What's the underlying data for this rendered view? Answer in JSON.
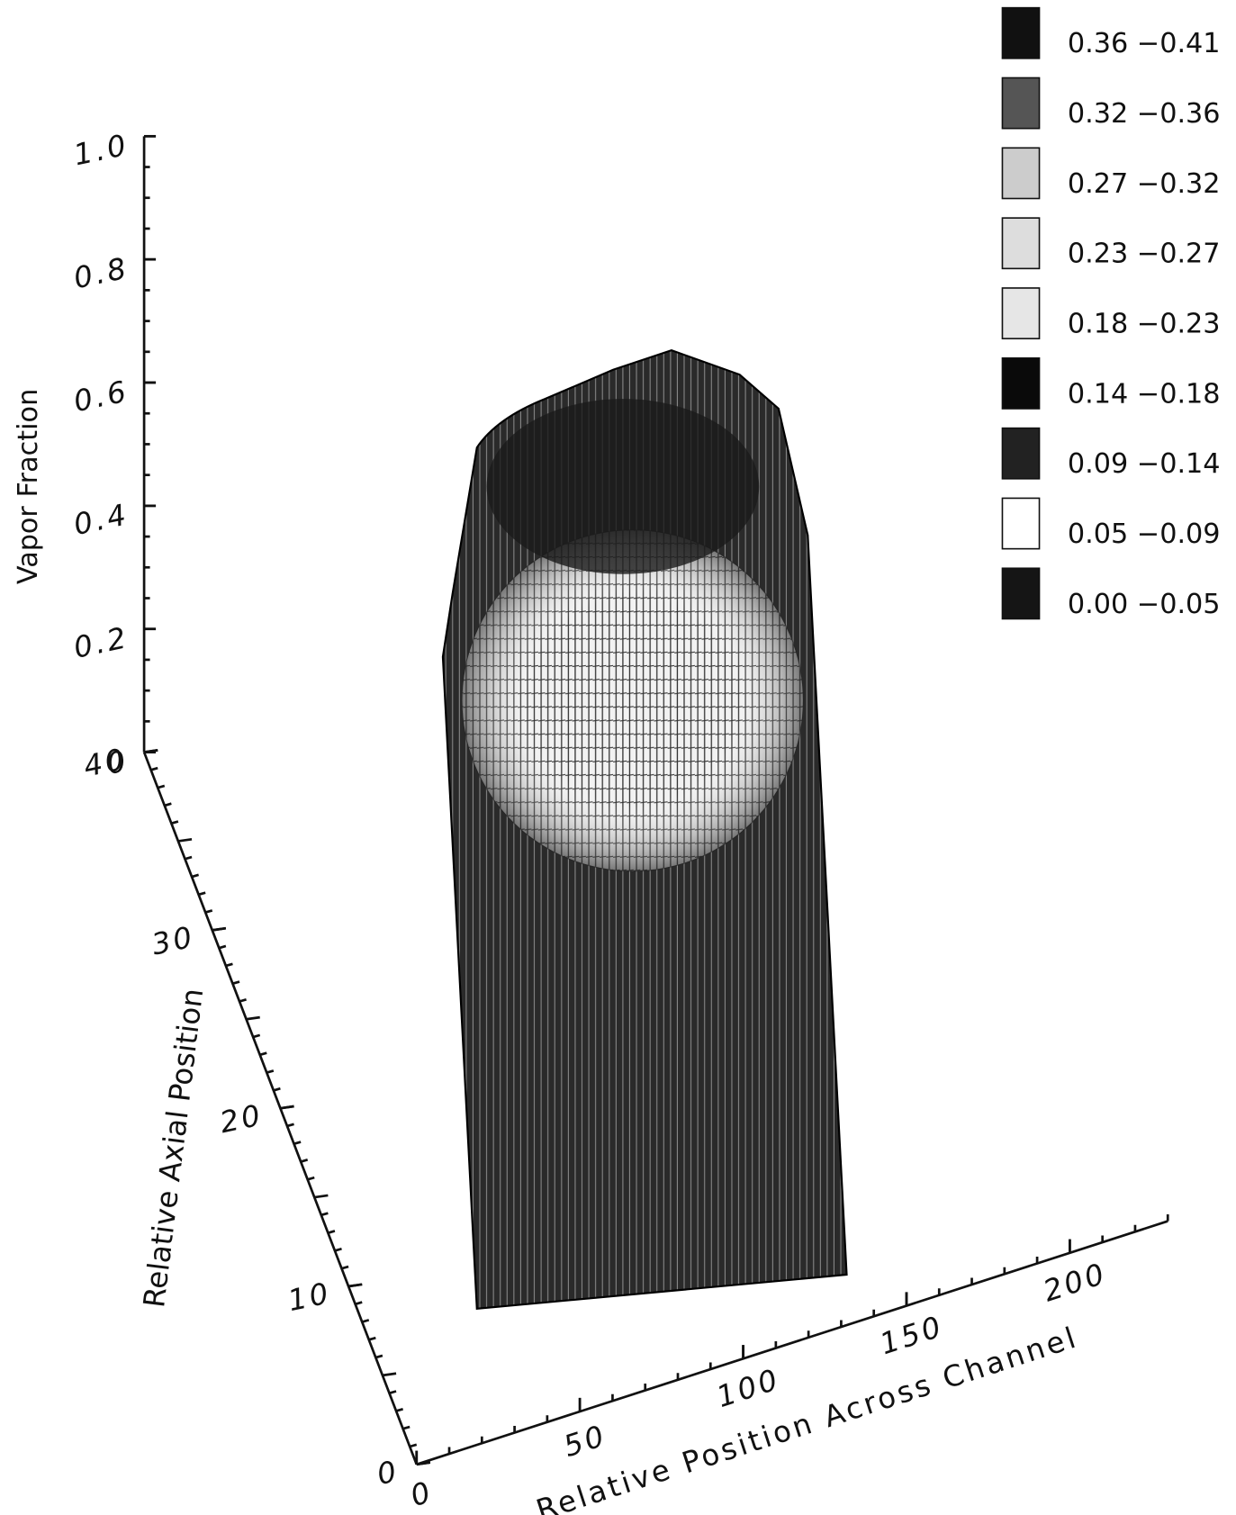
{
  "chart_data": {
    "type": "surface3d",
    "xlabel": "Relative Position Across Channel",
    "ylabel": "Relative Axial Position",
    "zlabel": "Vapor Fraction",
    "xlim": [
      0,
      230
    ],
    "xticks": [
      0,
      50,
      100,
      150,
      200
    ],
    "ylim": [
      0,
      40
    ],
    "yticks": [
      0,
      10,
      20,
      30,
      40
    ],
    "zlim": [
      0,
      1.0
    ],
    "zticks": [
      {
        "value": 0,
        "label": "0"
      },
      {
        "value": 0.2,
        "label": "0.2"
      },
      {
        "value": 0.4,
        "label": "0.4"
      },
      {
        "value": 0.6,
        "label": "0.6"
      },
      {
        "value": 0.8,
        "label": "0.8"
      },
      {
        "value": 1.0,
        "label": "1.0"
      }
    ],
    "legend": [
      {
        "label": "0.36 −0.41",
        "color": "#111111"
      },
      {
        "label": "0.32 −0.36",
        "color": "#555555"
      },
      {
        "label": "0.27 −0.32",
        "color": "#cccccc"
      },
      {
        "label": "0.23 −0.27",
        "color": "#dddddd"
      },
      {
        "label": "0.18 −0.23",
        "color": "#e6e6e6"
      },
      {
        "label": "0.14 −0.18",
        "color": "#0a0a0a"
      },
      {
        "label": "0.09 −0.14",
        "color": "#222222"
      },
      {
        "label": "0.05 −0.09",
        "color": "#ffffff"
      },
      {
        "label": "0.00 −0.05",
        "color": "#151515"
      }
    ]
  }
}
